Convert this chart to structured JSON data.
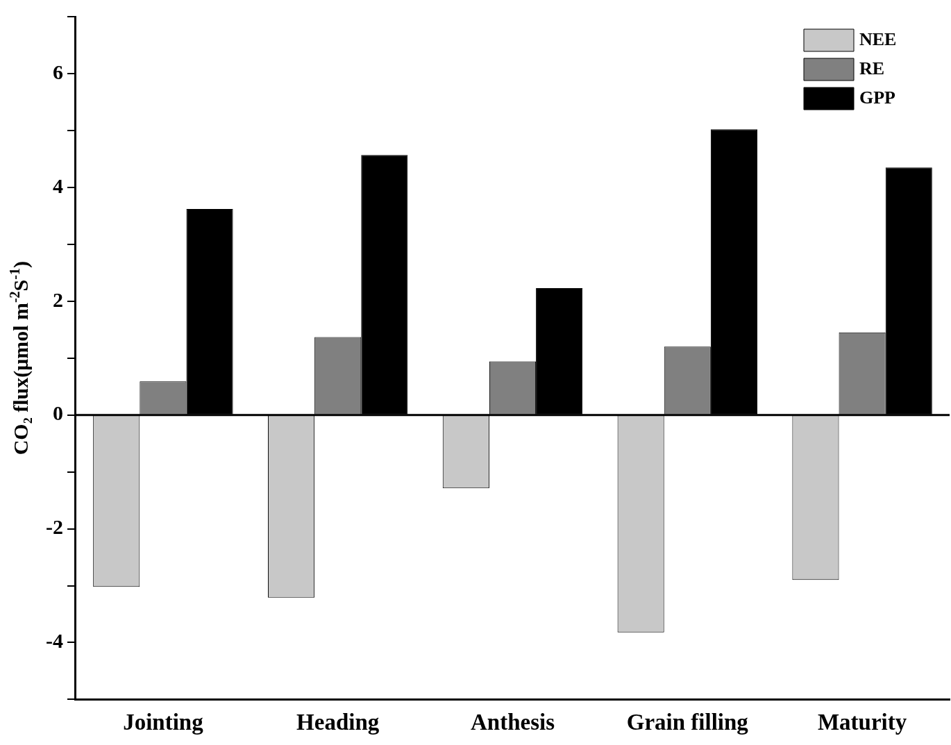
{
  "chart_data": {
    "type": "bar",
    "ylabel": "CO₂ flux(μmol m$^{-2}$S$^{-1}$)",
    "categories": [
      "Jointing",
      "Heading",
      "Anthesis",
      "Grain filling",
      "Maturity"
    ],
    "series": [
      {
        "name": "NEE",
        "color": "#c8c8c8",
        "values": [
          -3.02,
          -3.21,
          -1.29,
          -3.82,
          -2.9
        ]
      },
      {
        "name": "RE",
        "color": "#808080",
        "values": [
          0.59,
          1.37,
          0.94,
          1.2,
          1.45
        ]
      },
      {
        "name": "GPP",
        "color": "#000000",
        "values": [
          3.62,
          4.57,
          2.23,
          5.02,
          4.35
        ]
      }
    ],
    "ylim": [
      -5,
      7
    ],
    "yticks": [
      {
        "value": -5,
        "label": null
      },
      -4,
      {
        "value": -3,
        "label": null
      },
      -2,
      {
        "value": -1,
        "label": null
      },
      0,
      {
        "value": 1,
        "label": null
      },
      2,
      {
        "value": 3,
        "label": null
      },
      4,
      {
        "value": 5,
        "label": null
      },
      6,
      {
        "value": 7,
        "label": null
      }
    ],
    "ref_lines": [
      {
        "axis": "y",
        "value": 0,
        "color": "#000000"
      }
    ],
    "grid": false,
    "legend": "top right"
  }
}
